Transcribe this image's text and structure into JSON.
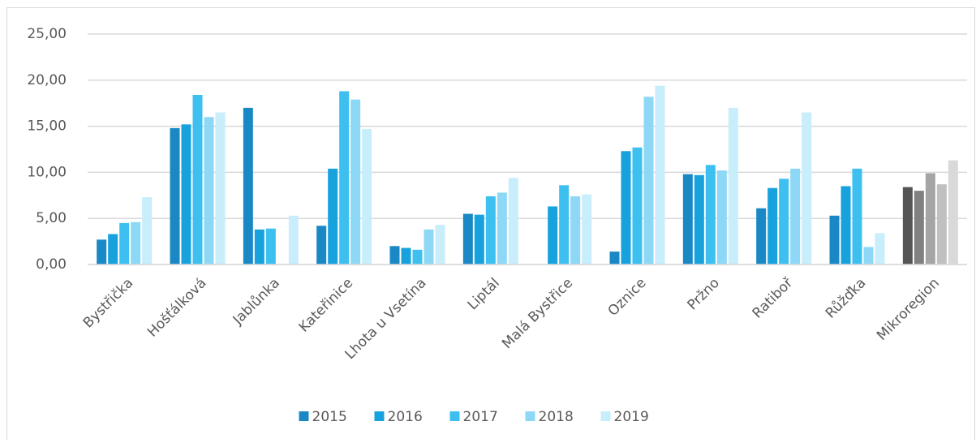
{
  "chart_data": {
    "type": "bar",
    "categories": [
      "Bystřička",
      "Hošťálková",
      "Jablůnka",
      "Kateřinice",
      "Lhota u Vsetína",
      "Liptál",
      "Malá Bystřice",
      "Oznice",
      "Pržno",
      "Ratiboř",
      "Růžďka",
      "Mikroregion"
    ],
    "series": [
      {
        "name": "2015",
        "color": "#1a88c4",
        "values": [
          2.7,
          14.8,
          17.0,
          4.2,
          2.0,
          5.5,
          null,
          1.4,
          9.8,
          6.1,
          5.3,
          8.4
        ]
      },
      {
        "name": "2016",
        "color": "#17a2de",
        "values": [
          3.3,
          15.2,
          3.8,
          10.4,
          1.8,
          5.4,
          6.3,
          12.3,
          9.7,
          8.3,
          8.5,
          8.0
        ]
      },
      {
        "name": "2017",
        "color": "#3dc0f0",
        "values": [
          4.5,
          18.4,
          3.9,
          18.8,
          1.6,
          7.4,
          8.6,
          12.7,
          10.8,
          9.3,
          10.4,
          9.9
        ]
      },
      {
        "name": "2018",
        "color": "#8dd8f6",
        "values": [
          4.6,
          16.0,
          null,
          17.9,
          3.8,
          7.8,
          7.4,
          18.2,
          10.2,
          10.4,
          1.9,
          8.7
        ]
      },
      {
        "name": "2019",
        "color": "#c8edfb",
        "values": [
          7.3,
          16.5,
          5.3,
          14.7,
          4.3,
          9.4,
          7.6,
          19.4,
          17.0,
          16.5,
          3.4,
          11.3
        ]
      }
    ],
    "highlight_category": "Mikroregion",
    "highlight_colors": [
      "#555555",
      "#808080",
      "#a5a5a5",
      "#c0c0c0",
      "#d9d9d9"
    ],
    "ylim": [
      0,
      25
    ],
    "yticks": [
      {
        "value": 0,
        "label": "0,00"
      },
      {
        "value": 5,
        "label": "5,00"
      },
      {
        "value": 10,
        "label": "10,00"
      },
      {
        "value": 15,
        "label": "15,00"
      },
      {
        "value": 20,
        "label": "20,00"
      },
      {
        "value": 25,
        "label": "25,00"
      }
    ],
    "grid": true,
    "legend": "bottom"
  }
}
